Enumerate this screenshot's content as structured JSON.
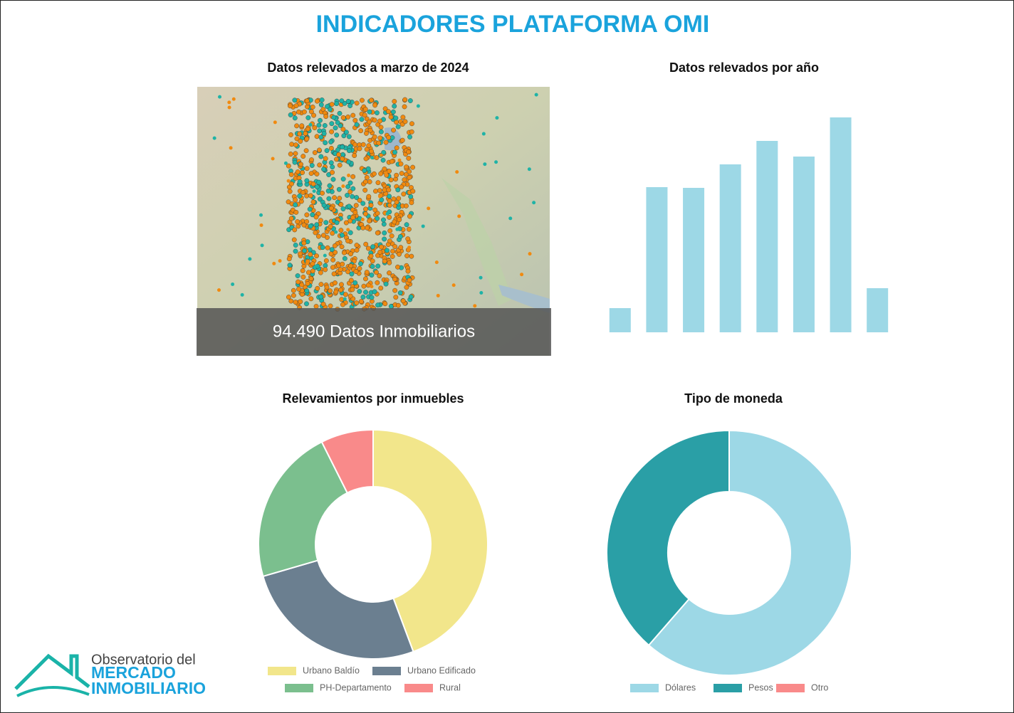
{
  "title": "INDICADORES PLATAFORMA OMI",
  "map": {
    "title": "Datos relevados a marzo de 2024",
    "caption": "94.490 Datos Inmobiliarios"
  },
  "chart_data": [
    {
      "type": "bar",
      "title": "Datos relevados por año",
      "categories": [
        null,
        null,
        null,
        null,
        null,
        null,
        null,
        null
      ],
      "values": [
        34,
        204,
        203,
        236,
        269,
        247,
        302,
        62
      ],
      "color": "#9dd8e6",
      "ylim": [
        0,
        310
      ]
    },
    {
      "type": "donut",
      "title": "Relevamientos por inmuebles",
      "categories": [
        "Urbano Baldío",
        "Urbano Edificado",
        "PH-Departamento",
        "Rural"
      ],
      "values": [
        44.3,
        26.2,
        22.1,
        7.4
      ],
      "colors": [
        "#f2e68b",
        "#6b7f90",
        "#7bbf8e",
        "#f98a8a"
      ]
    },
    {
      "type": "donut",
      "title": "Tipo de moneda",
      "categories": [
        "Dólares",
        "Pesos",
        "Otro"
      ],
      "values": [
        61.4,
        38.6,
        0
      ],
      "colors": [
        "#9dd8e6",
        "#2a9fa6",
        "#f98a8a"
      ]
    }
  ],
  "logo": {
    "line1": "Observatorio del",
    "line2": "MERCADO",
    "line3": "INMOBILIARIO"
  }
}
